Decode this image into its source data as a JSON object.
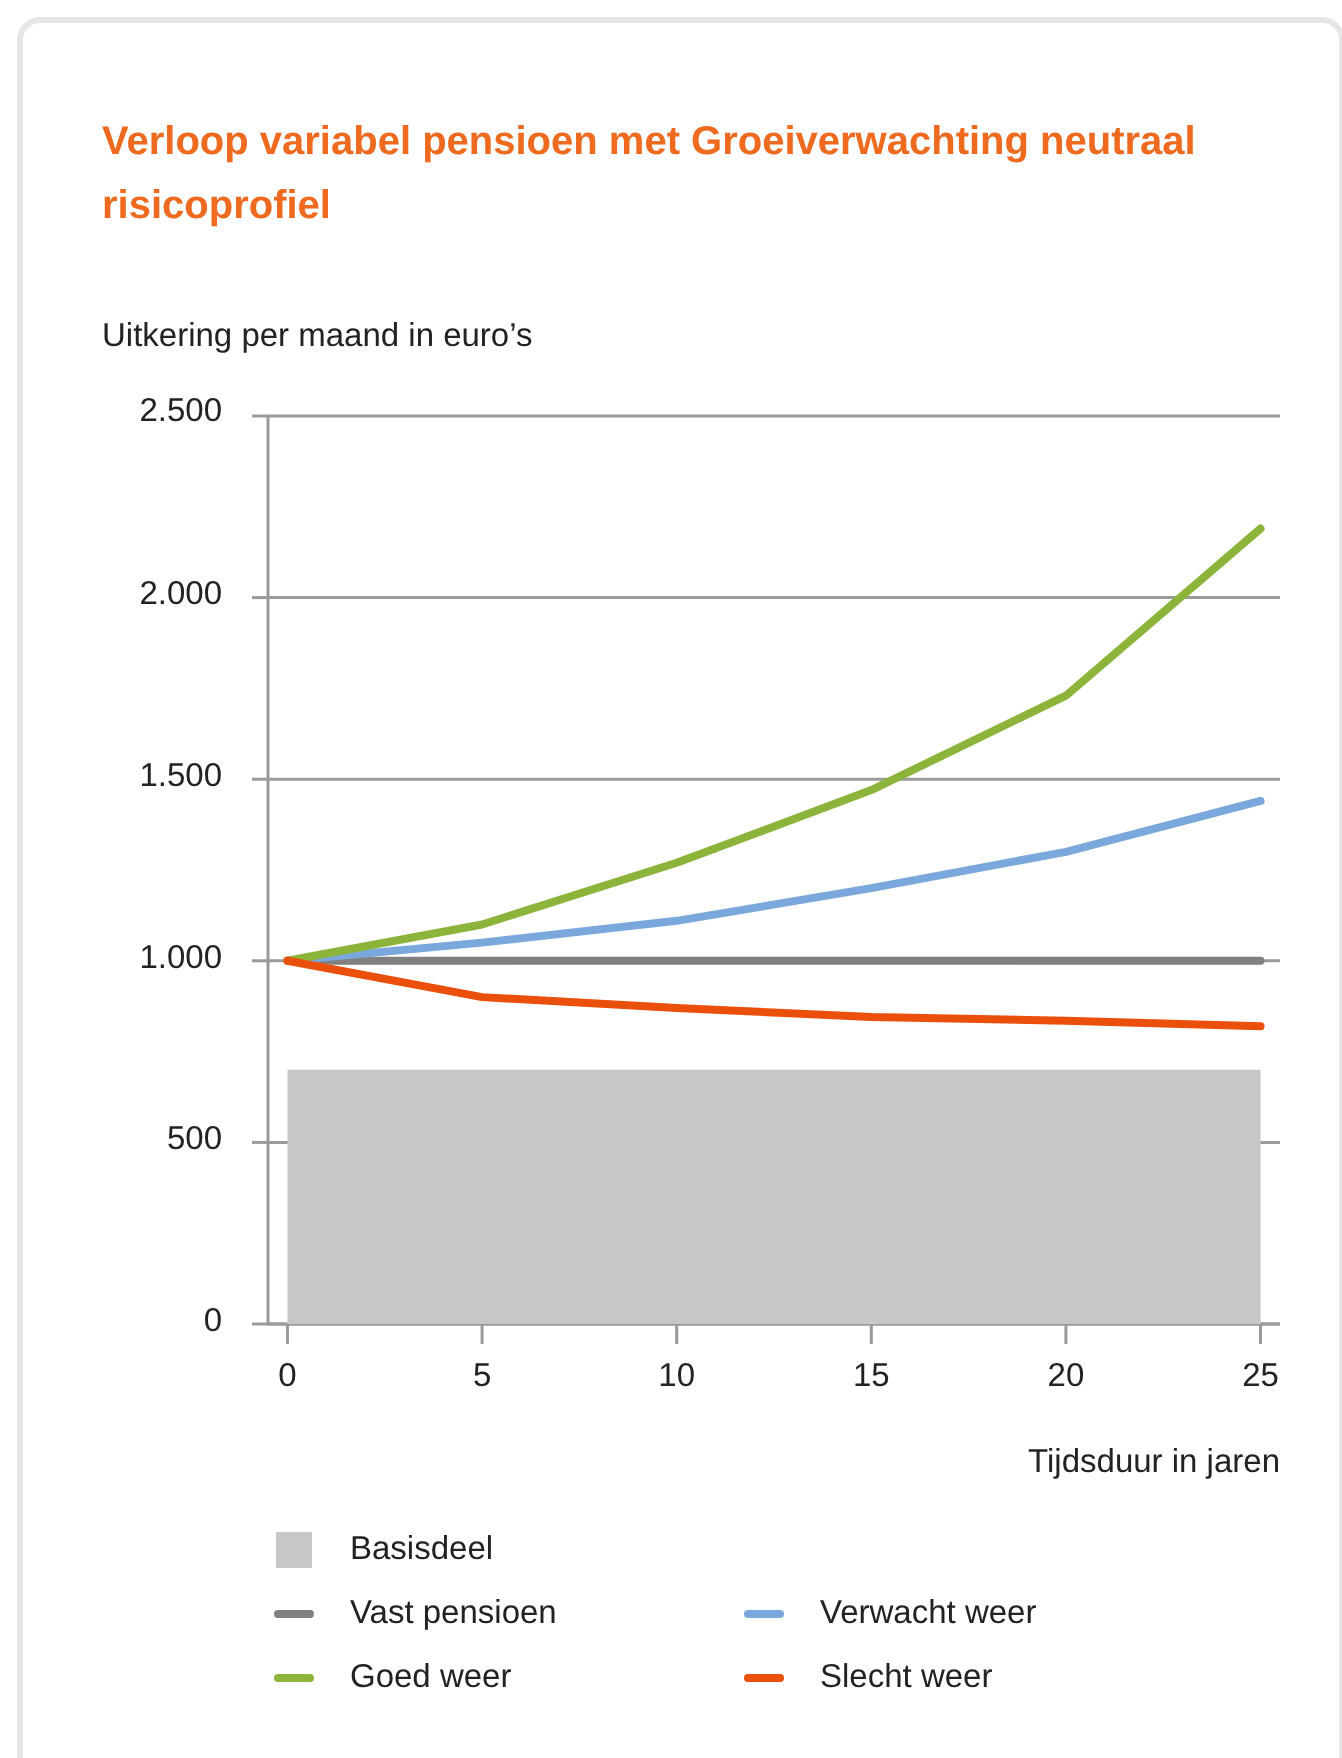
{
  "chart_data": {
    "type": "line",
    "title": "Verloop variabel pensioen met Groeiverwachting neutraal risicoprofiel",
    "ylabel": "Uitkering per maand in euro’s",
    "xlabel": "Tijdsduur in jaren",
    "x": [
      0,
      5,
      10,
      15,
      20,
      25
    ],
    "xlim": [
      -0.5,
      25.5
    ],
    "xticks": [
      0,
      5,
      10,
      15,
      20,
      25
    ],
    "ylim": [
      0,
      2500
    ],
    "yticks": [
      {
        "value": 0,
        "label": "0"
      },
      {
        "value": 500,
        "label": "500"
      },
      {
        "value": 1000,
        "label": "1.000"
      },
      {
        "value": 1500,
        "label": "1.500"
      },
      {
        "value": 2000,
        "label": "2.000"
      },
      {
        "value": 2500,
        "label": "2.500"
      }
    ],
    "grid": "y",
    "legend": "bottom",
    "marker": "none",
    "line_style": "solid",
    "series": [
      {
        "name": "Basisdeel",
        "type": "area",
        "color": "#c8c7c6",
        "x": [
          0,
          25
        ],
        "values": [
          700,
          700
        ]
      },
      {
        "name": "Vast pensioen",
        "color": "#808080",
        "values": [
          1000,
          1000,
          1000,
          1000,
          1000,
          1000
        ]
      },
      {
        "name": "Verwacht weer",
        "color": "#7aa8dc",
        "values": [
          1000,
          1050,
          1110,
          1200,
          1300,
          1440
        ]
      },
      {
        "name": "Goed weer",
        "color": "#8db43a",
        "values": [
          1000,
          1100,
          1270,
          1470,
          1730,
          2190
        ]
      },
      {
        "name": "Slecht weer",
        "color": "#ea4f0c",
        "values": [
          1000,
          900,
          870,
          845,
          835,
          820
        ]
      }
    ]
  }
}
